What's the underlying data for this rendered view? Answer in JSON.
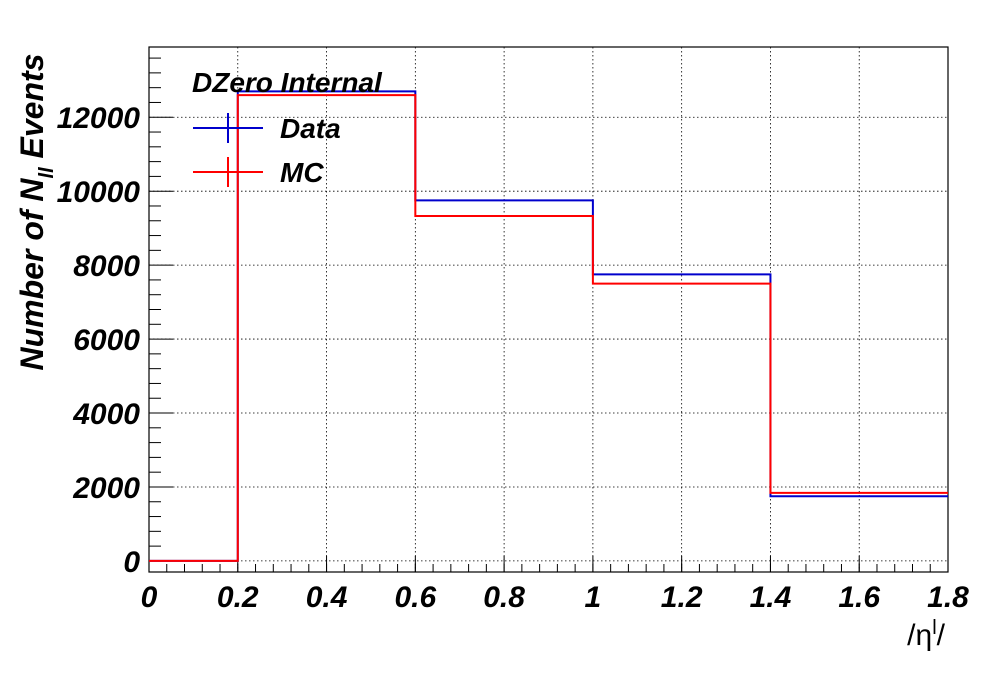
{
  "chart_data": {
    "type": "histogram",
    "annotation": "DZero Internal",
    "xlabel": "/η^l/",
    "ylabel": "Number of N_ll Events",
    "xlim": [
      0,
      1.8
    ],
    "ylim": [
      -300,
      13900
    ],
    "x_ticks": [
      "0",
      "0.2",
      "0.4",
      "0.6",
      "0.8",
      "1",
      "1.2",
      "1.4",
      "1.6",
      "1.8"
    ],
    "y_ticks": [
      "0",
      "2000",
      "4000",
      "6000",
      "8000",
      "10000",
      "12000"
    ],
    "bin_edges": [
      0,
      0.2,
      0.6,
      1.0,
      1.4,
      1.8
    ],
    "grid": true,
    "legend_position": "top-left",
    "series": [
      {
        "name": "Data",
        "color": "#0000cc",
        "values": [
          0,
          12700,
          9750,
          7750,
          1750
        ]
      },
      {
        "name": "MC",
        "color": "#ff0000",
        "values": [
          0,
          12600,
          9330,
          7500,
          1840
        ]
      }
    ]
  }
}
